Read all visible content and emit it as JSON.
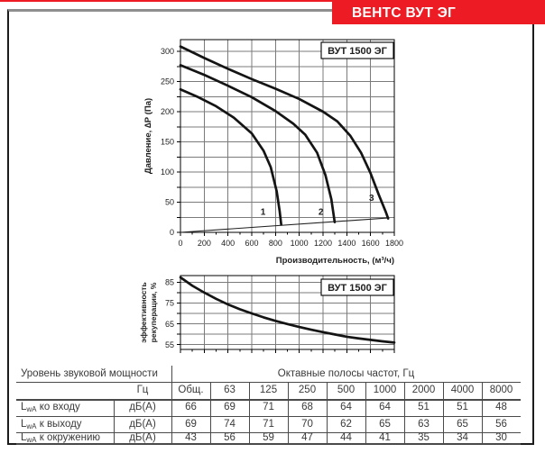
{
  "banner": {
    "title": "ВЕНТС ВУТ ЭГ",
    "color": "#ed1b24"
  },
  "chart_data": [
    {
      "type": "line",
      "title": "ВУТ 1500 ЭГ",
      "xlabel": "Производительность, (м³/ч)",
      "ylabel": "Давление, ∆Р (Па)",
      "xlim": [
        0,
        1800
      ],
      "ylim": [
        0,
        320
      ],
      "x_ticks": [
        0,
        200,
        400,
        600,
        800,
        1000,
        1200,
        1400,
        1600,
        1800
      ],
      "y_ticks": [
        0,
        50,
        100,
        150,
        200,
        250,
        300
      ],
      "x_grid_step": 200,
      "x_minor_step": 100,
      "y_grid_step": 25,
      "grid": "on",
      "legend": "none",
      "series": [
        {
          "name": "1",
          "label_pos": [
            695,
            29
          ],
          "points": [
            [
              0,
              237
            ],
            [
              150,
              224
            ],
            [
              300,
              209
            ],
            [
              450,
              190
            ],
            [
              600,
              164
            ],
            [
              700,
              135
            ],
            [
              760,
              108
            ],
            [
              810,
              68
            ],
            [
              835,
              35
            ],
            [
              848,
              13
            ]
          ]
        },
        {
          "name": "2",
          "label_pos": [
            1182,
            29
          ],
          "points": [
            [
              0,
              277
            ],
            [
              200,
              261
            ],
            [
              400,
              243
            ],
            [
              600,
              224
            ],
            [
              800,
              201
            ],
            [
              950,
              180
            ],
            [
              1050,
              162
            ],
            [
              1150,
              132
            ],
            [
              1220,
              95
            ],
            [
              1270,
              55
            ],
            [
              1298,
              17
            ]
          ]
        },
        {
          "name": "3",
          "label_pos": [
            1608,
            52
          ],
          "points": [
            [
              0,
              308
            ],
            [
              200,
              289
            ],
            [
              400,
              271
            ],
            [
              600,
              254
            ],
            [
              800,
              238
            ],
            [
              1000,
              221
            ],
            [
              1200,
              200
            ],
            [
              1320,
              184
            ],
            [
              1430,
              160
            ],
            [
              1520,
              132
            ],
            [
              1600,
              98
            ],
            [
              1670,
              62
            ],
            [
              1730,
              33
            ],
            [
              1748,
              23
            ]
          ]
        }
      ],
      "aux_line": {
        "name": "min-resistance-line",
        "points": [
          [
            0,
            0
          ],
          [
            1755,
            24
          ]
        ]
      }
    },
    {
      "type": "line",
      "title": "ВУТ 1500 ЭГ",
      "xlabel": "",
      "ylabel_lines": [
        "эффективность",
        "рекуперации, %"
      ],
      "xlim": [
        0,
        1800
      ],
      "ylim": [
        52.5,
        88
      ],
      "y_ticks": [
        55,
        65,
        75,
        85
      ],
      "x_grid_step": 200,
      "x_minor_step": 100,
      "y_grid_step": 5,
      "grid": "on",
      "legend": "none",
      "series": [
        {
          "name": "efficiency",
          "points": [
            [
              0,
              87.3
            ],
            [
              100,
              83.3
            ],
            [
              200,
              80
            ],
            [
              300,
              77
            ],
            [
              400,
              74.3
            ],
            [
              500,
              72
            ],
            [
              600,
              70
            ],
            [
              700,
              68.1
            ],
            [
              800,
              66.4
            ],
            [
              900,
              64.9
            ],
            [
              1000,
              63.5
            ],
            [
              1100,
              62.2
            ],
            [
              1200,
              61
            ],
            [
              1300,
              59.9
            ],
            [
              1400,
              58.8
            ],
            [
              1500,
              58
            ],
            [
              1600,
              57.3
            ],
            [
              1700,
              56.6
            ],
            [
              1800,
              56
            ]
          ]
        }
      ]
    }
  ],
  "table": {
    "header_left": "Уровень звуковой мощности",
    "header_right": "Октавные полосы частот, Гц",
    "subheader_unit": "Гц",
    "columns": [
      "Общ.",
      "63",
      "125",
      "250",
      "500",
      "1000",
      "2000",
      "4000",
      "8000"
    ],
    "rows": [
      {
        "label_prefix": "L",
        "label_sub": "wA",
        "label_rest": " ко входу",
        "unit": "дБ(А)",
        "values": [
          66,
          69,
          71,
          68,
          64,
          64,
          51,
          51,
          48
        ]
      },
      {
        "label_prefix": "L",
        "label_sub": "wA",
        "label_rest": " к выходу",
        "unit": "дБ(А)",
        "values": [
          69,
          74,
          71,
          70,
          62,
          65,
          63,
          65,
          56
        ]
      },
      {
        "label_prefix": "L",
        "label_sub": "wA",
        "label_rest": " к окружению",
        "unit": "дБ(А)",
        "values": [
          43,
          56,
          59,
          47,
          44,
          41,
          35,
          34,
          30
        ]
      }
    ]
  }
}
